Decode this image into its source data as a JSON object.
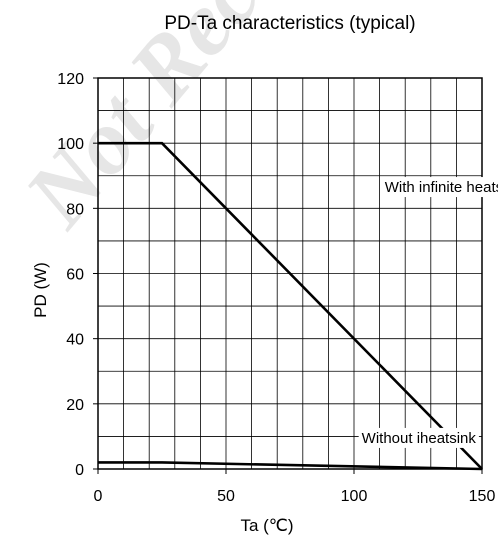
{
  "chart_data": {
    "type": "line",
    "title": "PD-Ta characteristics (typical)",
    "xlabel": "Ta  (℃)",
    "ylabel": "PD  (W)",
    "xlim": [
      0,
      150
    ],
    "ylim": [
      0,
      120
    ],
    "xticks": [
      0,
      50,
      100,
      150
    ],
    "yticks": [
      0,
      20,
      40,
      60,
      80,
      100,
      120
    ],
    "grid": true,
    "grid_step_x": 10,
    "grid_step_y": 10,
    "watermark": "Not Rec",
    "series": [
      {
        "name": "With infinite heatsink",
        "x": [
          0,
          25,
          150
        ],
        "y": [
          100,
          100,
          0
        ]
      },
      {
        "name": "Without iheatsink",
        "x": [
          0,
          25,
          150
        ],
        "y": [
          2.0,
          2.0,
          0
        ]
      }
    ],
    "annotations": [
      {
        "text": "With infinite heatsink",
        "series": 0
      },
      {
        "text": "Without iheatsink",
        "series": 1
      }
    ]
  }
}
